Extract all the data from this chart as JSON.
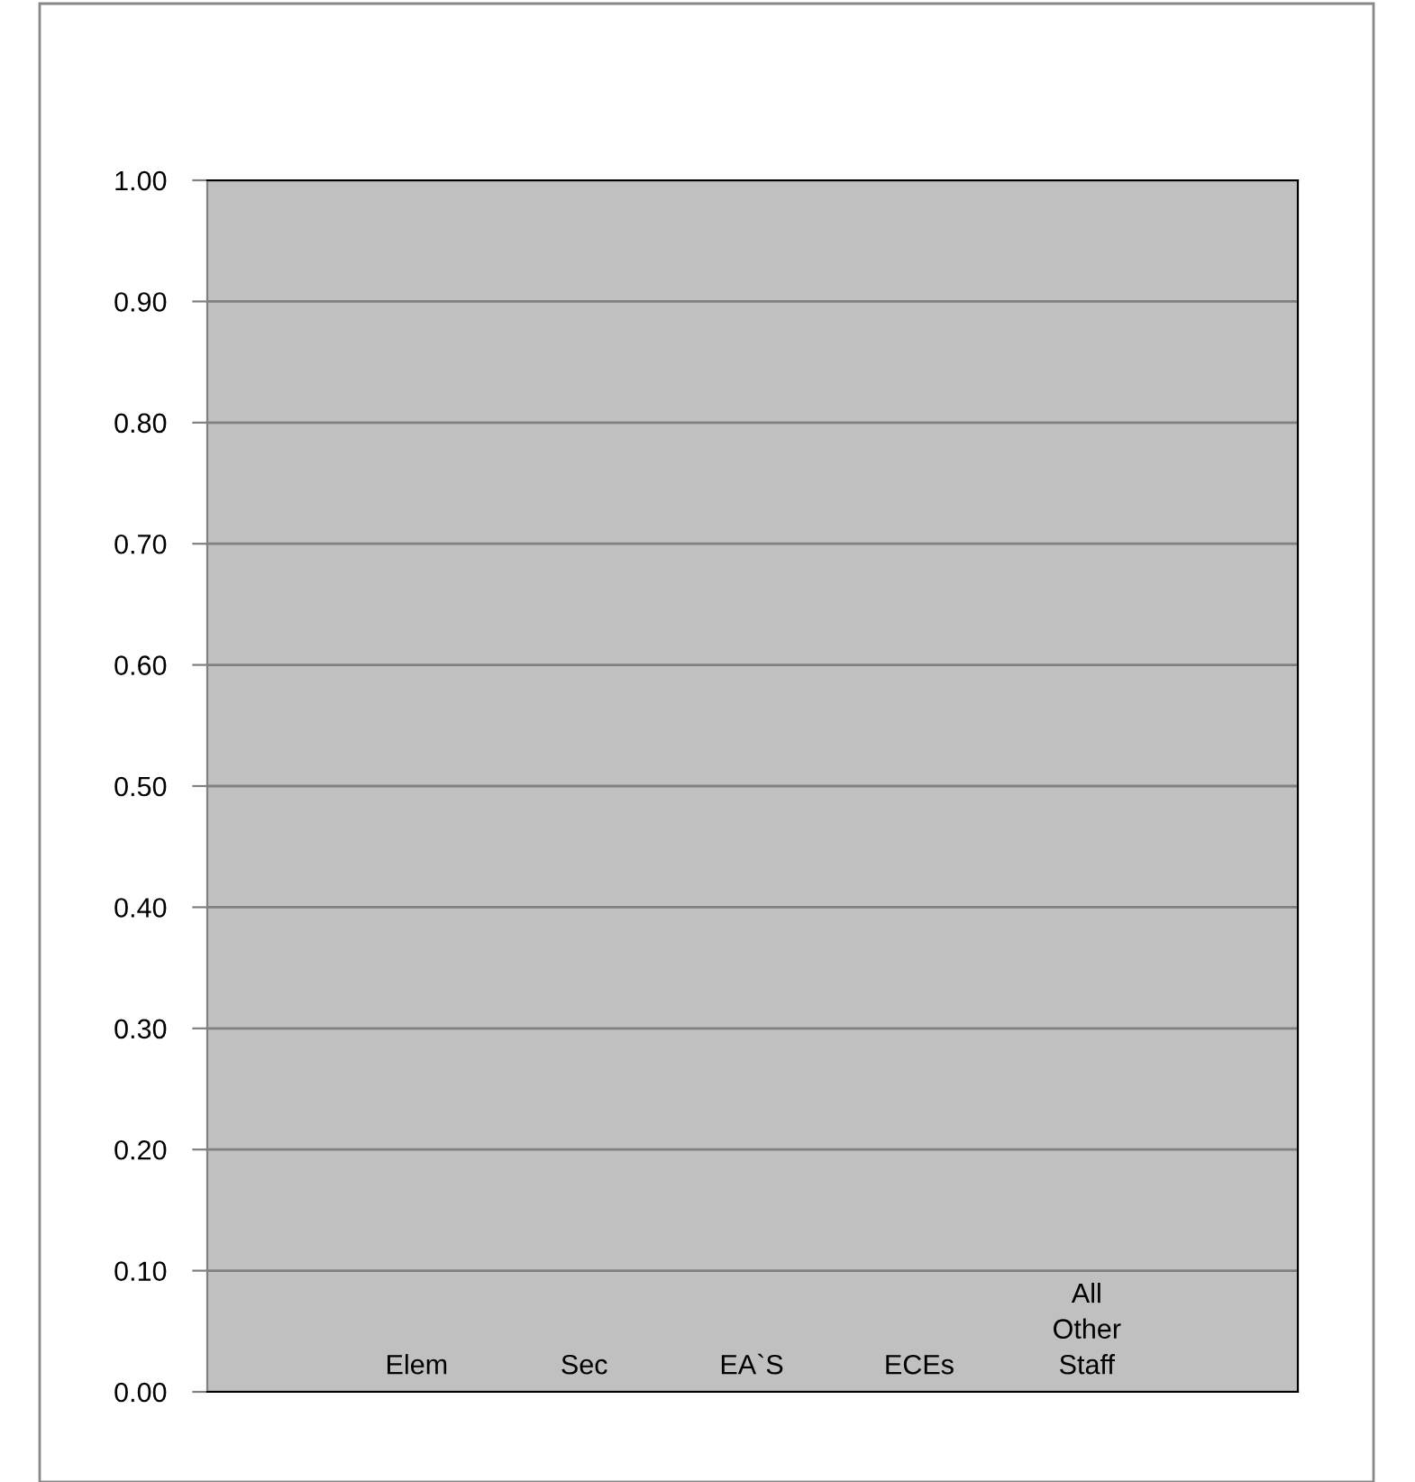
{
  "chart_data": {
    "type": "bar",
    "categories": [
      "Elem",
      "Sec",
      "EA`S",
      "ECEs",
      "All\nOther\nStaff"
    ],
    "values": [
      null,
      null,
      null,
      null,
      null
    ],
    "ylim": [
      0,
      1.0
    ],
    "yticks": [
      {
        "value": 0,
        "label": "0.00"
      },
      {
        "value": 0.1,
        "label": "0.10"
      },
      {
        "value": 0.2,
        "label": "0.20"
      },
      {
        "value": 0.3,
        "label": "0.30"
      },
      {
        "value": 0.4,
        "label": "0.40"
      },
      {
        "value": 0.5,
        "label": "0.50"
      },
      {
        "value": 0.6,
        "label": "0.60"
      },
      {
        "value": 0.7,
        "label": "0.70"
      },
      {
        "value": 0.8,
        "label": "0.80"
      },
      {
        "value": 0.9,
        "label": "0.90"
      },
      {
        "value": 1.0,
        "label": "1.00"
      }
    ],
    "grid": "y"
  }
}
